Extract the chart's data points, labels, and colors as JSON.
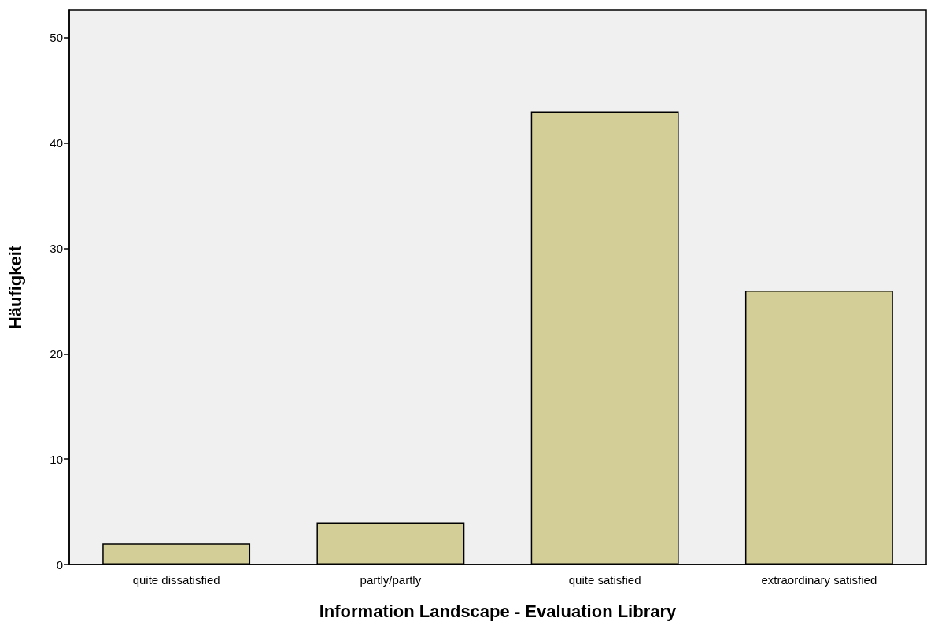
{
  "chart_data": {
    "type": "bar",
    "xlabel": "Information Landscape - Evaluation Library",
    "ylabel": "Häufigkeit",
    "categories": [
      "quite dissatisfied",
      "partly/partly",
      "quite satisfied",
      "extraordinary satisfied"
    ],
    "values": [
      2,
      4,
      43,
      26
    ],
    "color": "#d3ce97",
    "ylim": [
      0,
      52.6
    ],
    "yticks": [
      0,
      10,
      20,
      30,
      40,
      50
    ],
    "grid": false
  }
}
